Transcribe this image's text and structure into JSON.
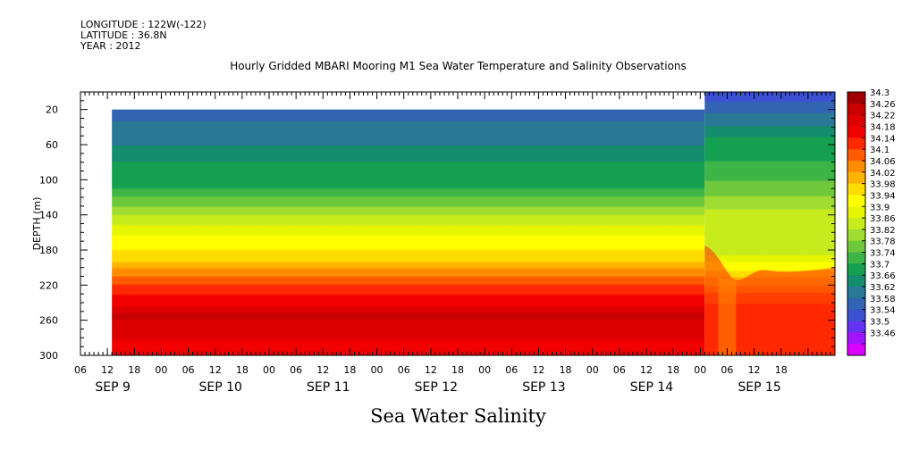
{
  "header": {
    "longitude": "LONGITUDE : 122W(-122)",
    "latitude": "LATITUDE : 36.8N",
    "year": "YEAR : 2012"
  },
  "chart_data": {
    "type": "heatmap",
    "title": "Hourly Gridded MBARI Mooring M1 Sea Water Temperature and Salinity Observations",
    "variable": "Sea Water Salinity",
    "ylabel": "DEPTH (m)",
    "ylim": [
      300,
      0
    ],
    "y_inverted": true,
    "yticks": [
      20,
      60,
      100,
      140,
      180,
      220,
      260,
      300
    ],
    "x_hour_labels": [
      "06",
      "12",
      "18",
      "00",
      "06",
      "12",
      "18",
      "00",
      "06",
      "12",
      "18",
      "00",
      "06",
      "12",
      "18",
      "00",
      "06",
      "12",
      "18",
      "00",
      "06",
      "12",
      "18",
      "00",
      "06",
      "12",
      "18"
    ],
    "x_day_labels": [
      "SEP  9",
      "SEP 10",
      "SEP 11",
      "SEP 12",
      "SEP 13",
      "SEP 14",
      "SEP 15"
    ],
    "x_start": "SEP 9 06:00",
    "data_start": "SEP 9 13:00",
    "surface_layer_start": "SEP 15 01:00",
    "colorbar_levels": [
      "34.3",
      "34.26",
      "34.22",
      "34.18",
      "34.14",
      "34.1",
      "34.06",
      "34.02",
      "33.98",
      "33.94",
      "33.9",
      "33.86",
      "33.82",
      "33.78",
      "33.74",
      "33.7",
      "33.66",
      "33.62",
      "33.58",
      "33.54",
      "33.5",
      "33.46"
    ],
    "colorbar_colors": [
      "#a00000",
      "#c80000",
      "#dc0000",
      "#f00000",
      "#ff2800",
      "#ff5a00",
      "#ff8c00",
      "#ffb400",
      "#ffdc00",
      "#ffff00",
      "#e6f500",
      "#c8eb1e",
      "#a0dc32",
      "#6ec83c",
      "#3cb446",
      "#14a050",
      "#148c6e",
      "#287896",
      "#3264b4",
      "#3c50d2",
      "#6432f0",
      "#a014ff",
      "#dc00ff"
    ],
    "profile_steady": [
      {
        "depth": 20,
        "salinity": 33.6
      },
      {
        "depth": 60,
        "salinity": 33.66
      },
      {
        "depth": 80,
        "salinity": 33.7
      },
      {
        "depth": 110,
        "salinity": 33.74
      },
      {
        "depth": 140,
        "salinity": 33.86
      },
      {
        "depth": 170,
        "salinity": 33.96
      },
      {
        "depth": 190,
        "salinity": 34.0
      },
      {
        "depth": 205,
        "salinity": 34.08
      },
      {
        "depth": 225,
        "salinity": 34.16
      },
      {
        "depth": 245,
        "salinity": 34.22
      },
      {
        "depth": 255,
        "salinity": 34.28
      },
      {
        "depth": 265,
        "salinity": 34.24
      },
      {
        "depth": 300,
        "salinity": 34.2
      }
    ],
    "profile_sep15": [
      {
        "depth": 10,
        "salinity": 33.57
      },
      {
        "depth": 20,
        "salinity": 33.58
      },
      {
        "depth": 60,
        "salinity": 33.7
      },
      {
        "depth": 100,
        "salinity": 33.76
      },
      {
        "depth": 140,
        "salinity": 33.86
      },
      {
        "depth": 190,
        "salinity": 33.9
      },
      {
        "depth": 215,
        "salinity": 34.02
      },
      {
        "depth": 235,
        "salinity": 34.12
      },
      {
        "depth": 260,
        "salinity": 34.18
      },
      {
        "depth": 300,
        "salinity": 34.14
      }
    ]
  },
  "footer": {
    "label": "Sea Water Salinity"
  }
}
